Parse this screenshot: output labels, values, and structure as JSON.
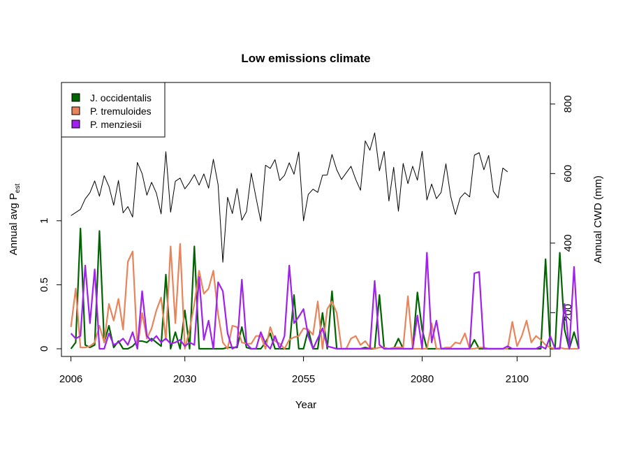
{
  "chart_data": {
    "type": "line",
    "title": "Low emissions climate",
    "xlabel": "Year",
    "ylabel_left": {
      "main": "Annual avg P",
      "sub": "est"
    },
    "ylabel_right": "Annual CWD (mm)",
    "xlim": [
      2004,
      2107
    ],
    "ylim_left": [
      -0.06,
      2.08
    ],
    "ylim_right": [
      74,
      862
    ],
    "x_ticks": [
      2006,
      2030,
      2055,
      2080,
      2100
    ],
    "y_ticks_left": [
      0,
      0.5,
      1
    ],
    "y_ticks_left_labels": [
      "0",
      "0.5",
      "1"
    ],
    "y_ticks_right": [
      200,
      400,
      600,
      800
    ],
    "legend_position": "top-left",
    "x_start": 2006,
    "x_step": 1,
    "cwd": {
      "color": "#000000",
      "values": [
        479,
        488,
        497,
        527,
        545,
        579,
        535,
        594,
        563,
        509,
        580,
        487,
        505,
        475,
        632,
        600,
        538,
        575,
        544,
        484,
        663,
        489,
        578,
        587,
        556,
        574,
        597,
        567,
        599,
        558,
        641,
        568,
        345,
        532,
        485,
        557,
        466,
        491,
        601,
        531,
        463,
        624,
        615,
        640,
        580,
        595,
        631,
        598,
        662,
        464,
        540,
        555,
        546,
        595,
        596,
        655,
        611,
        583,
        602,
        621,
        583,
        552,
        694,
        667,
        717,
        608,
        664,
        521,
        618,
        492,
        629,
        571,
        621,
        581,
        664,
        524,
        570,
        528,
        546,
        628,
        535,
        482,
        530,
        545,
        533,
        653,
        660,
        611,
        652,
        549,
        530,
        616,
        605
      ]
    },
    "series": [
      {
        "name": "J. occidentalis",
        "color": "#006400",
        "values": [
          0.0,
          0.05,
          0.94,
          0.03,
          0.01,
          0.03,
          0.92,
          0.05,
          0.18,
          0.01,
          0.06,
          0.0,
          0.0,
          0.02,
          0.06,
          0.06,
          0.05,
          0.08,
          0.05,
          0.02,
          0.58,
          0.0,
          0.13,
          0.0,
          0.3,
          0.0,
          0.8,
          0.0,
          0.0,
          0.0,
          0.0,
          0.0,
          0.0,
          0.01,
          0.01,
          0.01,
          0.17,
          0.01,
          0.0,
          0.0,
          0.0,
          0.05,
          0.12,
          0.0,
          0.0,
          0.0,
          0.0,
          0.42,
          0.0,
          0.0,
          0.15,
          0.0,
          0.0,
          0.28,
          0.0,
          0.45,
          0.0,
          0.0,
          0.0,
          0.0,
          0.0,
          0.0,
          0.01,
          0.0,
          0.0,
          0.42,
          0.0,
          0.0,
          0.0,
          0.08,
          0.0,
          0.0,
          0.0,
          0.44,
          0.15,
          0.0,
          0.0,
          0.0,
          0.0,
          0.0,
          0.0,
          0.0,
          0.0,
          0.0,
          0.0,
          0.07,
          0.0,
          0.0,
          0.0,
          0.0,
          0.0,
          0.0,
          0.0,
          0.0,
          0.0,
          0.0,
          0.0,
          0.0,
          0.0,
          0.0,
          0.7,
          0.0,
          0.0,
          0.75,
          0.15,
          0.0,
          0.13,
          0.0
        ]
      },
      {
        "name": "P. tremuloides",
        "color": "#E8845B",
        "values": [
          0.17,
          0.47,
          0.01,
          0.01,
          0.02,
          0.05,
          0.18,
          0.05,
          0.35,
          0.22,
          0.39,
          0.15,
          0.68,
          0.76,
          0.0,
          0.28,
          0.08,
          0.16,
          0.3,
          0.4,
          0.07,
          0.8,
          0.2,
          0.82,
          0.0,
          0.15,
          0.35,
          0.61,
          0.43,
          0.47,
          0.61,
          0.27,
          0.05,
          0.0,
          0.18,
          0.17,
          0.05,
          0.04,
          0.04,
          0.1,
          0.1,
          0.0,
          0.17,
          0.06,
          0.04,
          0.0,
          0.07,
          0.09,
          0.1,
          0.16,
          0.15,
          0.11,
          0.37,
          0.0,
          0.31,
          0.37,
          0.28,
          0.0,
          0.0,
          0.08,
          0.1,
          0.03,
          0.06,
          0.01,
          0.0,
          0.01,
          0.01,
          0.0,
          0.01,
          0.01,
          0.01,
          0.41,
          0.0,
          0.0,
          0.0,
          0.0,
          0.2,
          0.0,
          0.0,
          0.01,
          0.01,
          0.05,
          0.04,
          0.12,
          0.0,
          0.0,
          0.01,
          0.01,
          0.0,
          0.0,
          0.0,
          0.0,
          0.0,
          0.21,
          0.02,
          0.1,
          0.22,
          0.05,
          0.1,
          0.07,
          0.03,
          0.01,
          0.0,
          0.01,
          0.0,
          0.0,
          0.0,
          0.0
        ]
      },
      {
        "name": "P. menziesii",
        "color": "#A020F0",
        "values": [
          0.12,
          0.08,
          0.1,
          0.65,
          0.2,
          0.62,
          0.0,
          0.0,
          0.12,
          0.03,
          0.05,
          0.08,
          0.03,
          0.13,
          0.0,
          0.45,
          0.1,
          0.06,
          0.1,
          0.05,
          0.08,
          0.04,
          0.05,
          0.07,
          0.02,
          0.05,
          0.03,
          0.56,
          0.07,
          0.22,
          0.0,
          0.52,
          0.45,
          0.12,
          0.0,
          0.02,
          0.54,
          0.04,
          0.0,
          0.0,
          0.13,
          0.04,
          0.0,
          0.1,
          0.0,
          0.1,
          0.65,
          0.2,
          0.25,
          0.31,
          0.1,
          0.0,
          0.08,
          0.16,
          0.02,
          0.01,
          0.0,
          0.0,
          0.0,
          0.0,
          0.0,
          0.0,
          0.0,
          0.0,
          0.53,
          0.03,
          0.0,
          0.0,
          0.0,
          0.0,
          0.0,
          0.0,
          0.0,
          0.26,
          0.0,
          0.75,
          0.05,
          0.22,
          0.0,
          0.0,
          0.0,
          0.0,
          0.0,
          0.0,
          0.0,
          0.59,
          0.6,
          0.0,
          0.0,
          0.0,
          0.0,
          0.0,
          0.02,
          0.0,
          0.0,
          0.0,
          0.0,
          0.0,
          0.0,
          0.02,
          0.0,
          0.1,
          0.0,
          0.0,
          0.35,
          0.0,
          0.64,
          0.0
        ]
      }
    ]
  }
}
